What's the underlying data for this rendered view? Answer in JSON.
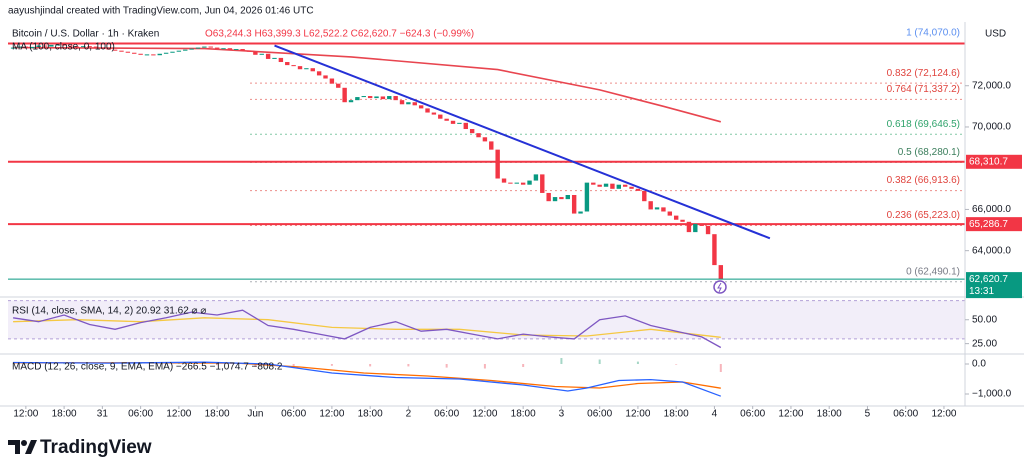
{
  "chart_data": {
    "type": "candlestick",
    "title": "aayushjindal created with TradingView.com, Jun 04, 2026 01:46 UTC",
    "symbol": "Bitcoin / U.S. Dollar · 1h · Kraken",
    "ohlc": "O63,244.3 H63,399.3 L62,522.2 C62,620.7 −624.3 (−0.99%)",
    "ma_label": "MA (100, close, 0, 100)",
    "currency": "USD",
    "x": [
      10,
      11,
      12,
      13,
      14,
      15,
      16,
      17,
      18,
      19,
      20,
      21,
      22,
      23,
      24,
      25,
      26,
      27,
      28,
      29,
      30,
      31,
      32,
      33,
      34,
      35,
      36,
      37,
      38,
      39,
      40,
      41,
      42,
      43,
      44,
      45,
      46,
      47,
      48,
      49,
      50,
      51,
      52,
      53,
      54,
      55,
      56,
      57,
      58,
      59,
      60,
      61,
      62,
      63,
      64,
      65,
      66,
      67,
      68,
      69,
      70,
      71,
      72,
      73,
      74,
      75,
      76,
      77,
      78,
      79,
      80,
      81,
      82,
      83,
      84,
      85,
      86,
      87,
      88,
      89,
      90,
      91,
      92,
      93,
      94,
      95,
      96,
      97,
      98,
      99,
      100,
      101,
      102,
      103,
      104,
      105,
      106,
      107,
      108,
      109,
      110,
      111,
      112,
      113,
      114,
      115,
      116,
      117,
      118,
      119,
      120,
      121
    ],
    "values": [
      73850,
      73900,
      73820,
      73880,
      73950,
      73900,
      73980,
      74000,
      73950,
      73900,
      73880,
      73920,
      73900,
      73850,
      73800,
      73750,
      73700,
      73650,
      73600,
      73550,
      73500,
      73520,
      73480,
      73550,
      73600,
      73650,
      73700,
      73750,
      73800,
      73850,
      73900,
      73850,
      73800,
      73820,
      73750,
      73780,
      73700,
      73650,
      73500,
      73550,
      73300,
      73350,
      73150,
      73000,
      72950,
      72800,
      72850,
      72700,
      72500,
      72350,
      72100,
      71900,
      71200,
      71300,
      71450,
      71500,
      71400,
      71480,
      71350,
      71500,
      71300,
      71100,
      71200,
      71050,
      70900,
      70700,
      70600,
      70400,
      70300,
      70150,
      70200,
      69900,
      69700,
      69500,
      69300,
      68900,
      67500,
      67300,
      67250,
      67300,
      67200,
      67400,
      67700,
      66800,
      66400,
      66600,
      66500,
      66700,
      65800,
      65900,
      67300,
      67200,
      67100,
      67250,
      67000,
      67200,
      67100,
      67000,
      66900,
      66400,
      66000,
      66100,
      65900,
      65700,
      65500,
      65400,
      64900,
      65300,
      65200,
      64800,
      63300,
      62620.7
    ],
    "colors": {
      "up": "#089981",
      "down": "#f23645"
    },
    "xlim": [
      9.2,
      159.3
    ],
    "xticks": [
      {
        "value": 12,
        "label": "12:00"
      },
      {
        "value": 18,
        "label": "18:00"
      },
      {
        "value": 24,
        "label": "31"
      },
      {
        "value": 30,
        "label": "06:00"
      },
      {
        "value": 36,
        "label": "12:00"
      },
      {
        "value": 42,
        "label": "18:00"
      },
      {
        "value": 48,
        "label": "Jun"
      },
      {
        "value": 54,
        "label": "06:00"
      },
      {
        "value": 60,
        "label": "12:00"
      },
      {
        "value": 66,
        "label": "18:00"
      },
      {
        "value": 72,
        "label": "2"
      },
      {
        "value": 78,
        "label": "06:00"
      },
      {
        "value": 84,
        "label": "12:00"
      },
      {
        "value": 90,
        "label": "18:00"
      },
      {
        "value": 96,
        "label": "3"
      },
      {
        "value": 102,
        "label": "06:00"
      },
      {
        "value": 108,
        "label": "12:00"
      },
      {
        "value": 114,
        "label": "18:00"
      },
      {
        "value": 120,
        "label": "4"
      },
      {
        "value": 126,
        "label": "06:00"
      },
      {
        "value": 132,
        "label": "12:00"
      },
      {
        "value": 138,
        "label": "18:00"
      },
      {
        "value": 144,
        "label": "5"
      },
      {
        "value": 150,
        "label": "06:00"
      },
      {
        "value": 156,
        "label": "12:00"
      }
    ],
    "ylim": [
      61850,
      74800
    ],
    "yticks": [
      {
        "value": 72000,
        "label": "72,000.0"
      },
      {
        "value": 70000,
        "label": "70,000.0"
      },
      {
        "value": 66000,
        "label": "66,000.0"
      },
      {
        "value": 64000,
        "label": "64,000.0"
      }
    ],
    "ma": {
      "x": [
        10,
        40,
        63,
        86,
        102,
        112,
        121
      ],
      "values": [
        73850,
        73800,
        73400,
        72780,
        71800,
        71000,
        70250
      ],
      "color": "#e8454f"
    },
    "trendline": {
      "x": [
        51,
        128.7
      ],
      "values": [
        73950,
        64600
      ],
      "color": "#2531d6"
    },
    "levels": [
      {
        "value": 74050
      },
      {
        "value": 68310.7,
        "label": "68,310.7"
      },
      {
        "value": 65286.7,
        "label": "65,286.7"
      }
    ],
    "level_color": "#f23645",
    "current": {
      "label": "62,620.7",
      "countdown": "13:31",
      "color": "#089981"
    },
    "fib": [
      {
        "value": 74070.0,
        "label": "1 (74,070.0)",
        "color": "#5b8ff0"
      },
      {
        "value": 72124.6,
        "label": "0.832 (72,124.6)",
        "color": "#e0443e"
      },
      {
        "value": 71337.2,
        "label": "0.764 (71,337.2)",
        "color": "#e0443e"
      },
      {
        "value": 69646.5,
        "label": "0.618 (69,646.5)",
        "color": "#2fa36b"
      },
      {
        "value": 68280.1,
        "label": "0.5 (68,280.1)",
        "color": "#3a7d5b"
      },
      {
        "value": 66913.6,
        "label": "0.382 (66,913.6)",
        "color": "#e0443e"
      },
      {
        "value": 65223.0,
        "label": "0.236 (65,223.0)",
        "color": "#e0443e"
      },
      {
        "value": 62490.1,
        "label": "0 (62,490.1)",
        "color": "#787b86"
      }
    ],
    "rsi": {
      "label": "RSI (14, close, SMA, 14, 2) 20.92 31.62 ⌀ ⌀",
      "x": [
        10,
        14,
        18,
        22,
        26,
        30,
        34,
        38,
        42,
        46,
        50,
        54,
        58,
        62,
        66,
        70,
        74,
        78,
        82,
        86,
        90,
        94,
        98,
        102,
        106,
        110,
        114,
        118,
        121
      ],
      "values": [
        52,
        48,
        55,
        45,
        40,
        47,
        52,
        58,
        55,
        60,
        44,
        40,
        35,
        30,
        42,
        48,
        38,
        40,
        35,
        30,
        35,
        32,
        30,
        50,
        54,
        44,
        38,
        32,
        20.92
      ],
      "sma_x": [
        10,
        20,
        30,
        40,
        50,
        60,
        70,
        80,
        90,
        100,
        110,
        121
      ],
      "sma": [
        48,
        50,
        48,
        52,
        50,
        42,
        40,
        40,
        34,
        33,
        40,
        31.62
      ],
      "color": "#7e57c2",
      "sma_color": "#f5c842",
      "band": [
        30,
        70
      ],
      "ylim": [
        15.2,
        71.7
      ],
      "yticks": [
        {
          "value": 50,
          "label": "50.00"
        },
        {
          "value": 25,
          "label": "25.00"
        }
      ]
    },
    "macd": {
      "label": "MACD (12, 26, close, 9, EMA, EMA) −266.5 −1,074.7 −808.2",
      "x": [
        10,
        25,
        40,
        50,
        60,
        70,
        80,
        90,
        97,
        100,
        105,
        110,
        115,
        121
      ],
      "values": [
        50,
        30,
        60,
        0,
        -300,
        -450,
        -500,
        -700,
        -900,
        -800,
        -550,
        -520,
        -600,
        -1074.7
      ],
      "signal_x": [
        10,
        30,
        45,
        55,
        65,
        75,
        85,
        95,
        102,
        108,
        115,
        121
      ],
      "signal": [
        40,
        40,
        30,
        -100,
        -300,
        -400,
        -550,
        -750,
        -800,
        -650,
        -600,
        -808.2
      ],
      "hist_x": [
        12,
        18,
        24,
        30,
        36,
        42,
        48,
        54,
        60,
        66,
        72,
        78,
        84,
        90,
        96,
        102,
        108,
        114,
        121
      ],
      "hist": [
        10,
        15,
        5,
        20,
        15,
        -40,
        -100,
        -120,
        -60,
        -80,
        -80,
        -120,
        -150,
        -100,
        200,
        150,
        80,
        -20,
        -266.5
      ],
      "color": "#2962ff",
      "signal_color": "#ff6d00",
      "ylim": [
        -1367,
        267
      ],
      "yticks": [
        {
          "value": 0,
          "label": "0.0"
        },
        {
          "value": -1000,
          "label": "−1,000.0"
        }
      ]
    },
    "brand": "TradingView"
  }
}
